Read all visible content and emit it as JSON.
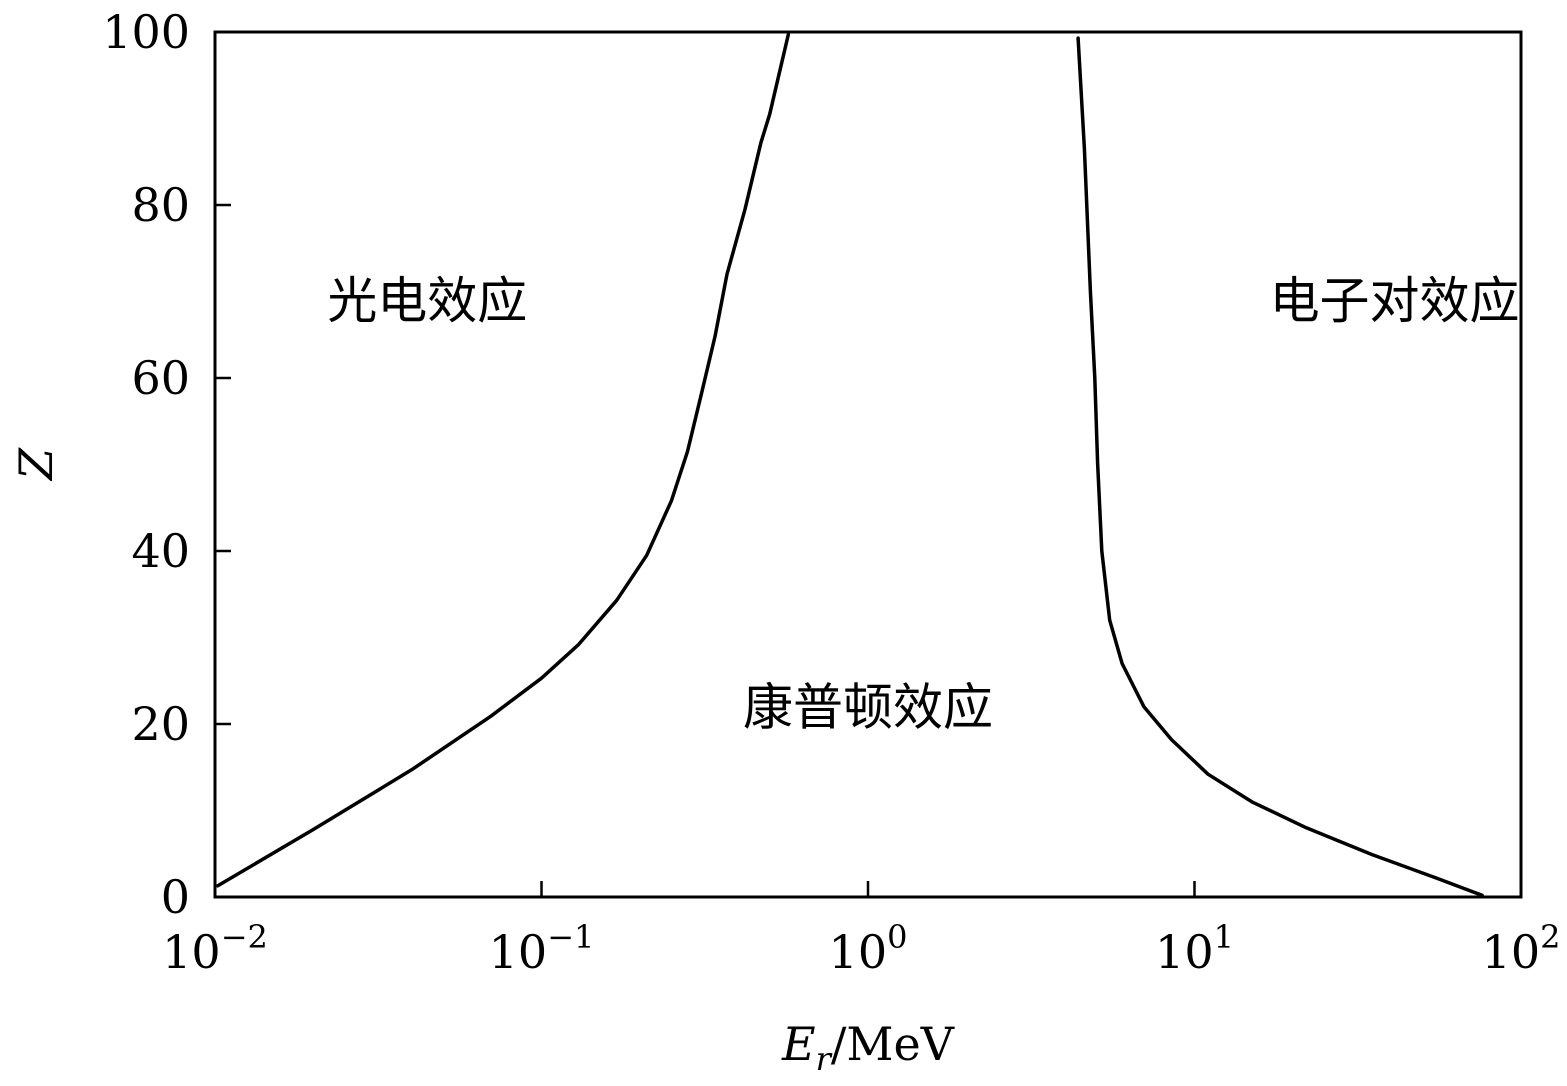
{
  "chart_data": {
    "type": "line",
    "xscale": "log",
    "xlim": [
      0.01,
      100
    ],
    "ylim": [
      0,
      100
    ],
    "xticks": [
      {
        "value": 0.01,
        "base": "10",
        "exp": "−2"
      },
      {
        "value": 0.1,
        "base": "10",
        "exp": "−1"
      },
      {
        "value": 1,
        "base": "10",
        "exp": "0"
      },
      {
        "value": 10,
        "base": "10",
        "exp": "1"
      },
      {
        "value": 100,
        "base": "10",
        "exp": "2"
      }
    ],
    "yticks": [
      {
        "value": 0,
        "label": "0"
      },
      {
        "value": 20,
        "label": "20"
      },
      {
        "value": 40,
        "label": "40"
      },
      {
        "value": 60,
        "label": "60"
      },
      {
        "value": 80,
        "label": "80"
      },
      {
        "value": 100,
        "label": "100"
      }
    ],
    "xlabel": {
      "main": "E",
      "sub": "r",
      "unit": "/MeV"
    },
    "ylabel": "Z",
    "grid": false,
    "series": [
      {
        "x": [
          0.0102,
          0.02,
          0.04,
          0.07,
          0.1,
          0.13,
          0.17,
          0.21,
          0.25,
          0.28,
          0.31,
          0.34,
          0.37,
          0.42,
          0.47,
          0.5,
          0.57
        ],
        "y": [
          1.3,
          7.8,
          14.7,
          20.9,
          25.3,
          29.2,
          34.3,
          39.5,
          45.8,
          51.5,
          58.4,
          64.8,
          72,
          79.5,
          87.2,
          90.5,
          99.7
        ]
      },
      {
        "x": [
          4.4,
          4.6,
          4.8,
          4.95,
          5.05,
          5.2,
          5.5,
          6,
          7,
          8.5,
          11,
          15,
          22,
          35,
          55,
          76
        ],
        "y": [
          99.3,
          86.5,
          70,
          60,
          50.2,
          40,
          32,
          27,
          22,
          18.2,
          14.2,
          11,
          8,
          4.9,
          2.2,
          0.2
        ]
      }
    ],
    "annotations": [
      {
        "text": "光电效应",
        "x": 0.0447,
        "y": 69
      },
      {
        "text": "电子对效应",
        "x": 41,
        "y": 69
      },
      {
        "text": "康普顿效应",
        "x": 1,
        "y": 22
      }
    ]
  }
}
